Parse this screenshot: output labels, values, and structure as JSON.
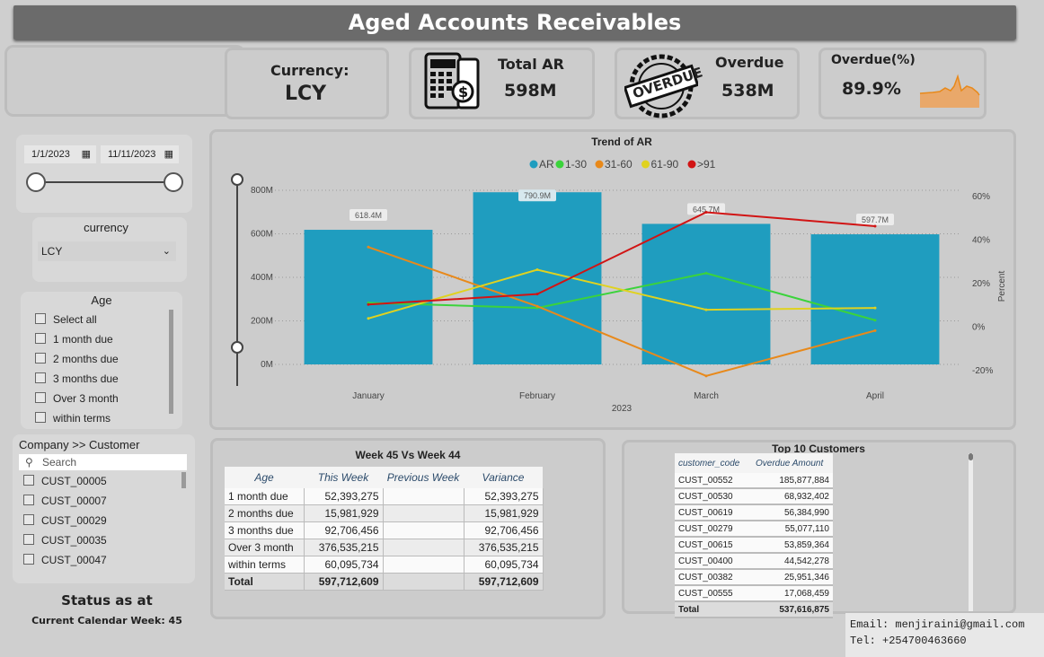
{
  "header": {
    "title": "Aged Accounts Receivables"
  },
  "kpis": {
    "currency_label": "Currency:",
    "currency_value": "LCY",
    "total_ar_label": "Total AR",
    "total_ar_value": "598M",
    "overdue_label": "Overdue",
    "overdue_value": "538M",
    "overdue_badge_text": "OVERDUE",
    "overdue_pct_label": "Overdue(%)",
    "overdue_pct_value": "89.9%"
  },
  "filters": {
    "date_start": "1/1/2023",
    "date_end": "11/11/2023",
    "currency_title": "currency",
    "currency_selected": "LCY",
    "age_title": "Age",
    "age_items": [
      "Select all",
      "1 month due",
      "2 months due",
      "3 months due",
      "Over 3 month",
      "within terms"
    ],
    "customer_title": "Company >> Customer",
    "customer_search_placeholder": "Search",
    "customer_items": [
      "CUST_00005",
      "CUST_00007",
      "CUST_00029",
      "CUST_00035",
      "CUST_00047"
    ]
  },
  "status": {
    "title": "Status as at",
    "week_label": "Current Calendar Week: 45"
  },
  "chart_data": {
    "type": "bar",
    "title": "Trend of AR",
    "categories": [
      "January",
      "February",
      "March",
      "April"
    ],
    "xlabel": "2023",
    "ylabel": "",
    "y2label": "Percent",
    "ylim": [
      0,
      800
    ],
    "y_ticks": [
      "0M",
      "200M",
      "400M",
      "600M",
      "800M"
    ],
    "y2lim": [
      -20,
      80
    ],
    "y2_ticks": [
      "-20%",
      "0%",
      "20%",
      "40%",
      "60%"
    ],
    "bar_series": {
      "name": "AR",
      "values": [
        618.4,
        790.9,
        645.7,
        597.7
      ],
      "labels": [
        "618.4M",
        "790.9M",
        "645.7M",
        "597.7M"
      ],
      "color": "#1f9dbf"
    },
    "line_series": [
      {
        "name": "1-30",
        "values": [
          19,
          16,
          36,
          9
        ],
        "color": "#3bd33b"
      },
      {
        "name": "31-60",
        "values": [
          51,
          17,
          -23,
          3
        ],
        "color": "#e8891a"
      },
      {
        "name": "61-90",
        "values": [
          10,
          38,
          15,
          16
        ],
        "color": "#e0d21f"
      },
      {
        "name": ">91",
        "values": [
          18,
          24,
          71,
          63
        ],
        "color": "#d11414"
      }
    ],
    "legend_position": "top-center",
    "grid": true
  },
  "week_table": {
    "title": "Week 45 Vs Week 44",
    "columns": [
      "Age",
      "This Week",
      "Previous Week",
      "Variance"
    ],
    "rows": [
      [
        "1 month due",
        "52,393,275",
        "",
        "52,393,275"
      ],
      [
        "2 months due",
        "15,981,929",
        "",
        "15,981,929"
      ],
      [
        "3 months due",
        "92,706,456",
        "",
        "92,706,456"
      ],
      [
        "Over 3 month",
        "376,535,215",
        "",
        "376,535,215"
      ],
      [
        "within terms",
        "60,095,734",
        "",
        "60,095,734"
      ]
    ],
    "total": [
      "Total",
      "597,712,609",
      "",
      "597,712,609"
    ]
  },
  "top_customers": {
    "title": "Top 10 Customers",
    "columns": [
      "customer_code",
      "Overdue Amount"
    ],
    "rows": [
      [
        "CUST_00552",
        "185,877,884"
      ],
      [
        "CUST_00530",
        "68,932,402"
      ],
      [
        "CUST_00619",
        "56,384,990"
      ],
      [
        "CUST_00279",
        "55,077,110"
      ],
      [
        "CUST_00615",
        "53,859,364"
      ],
      [
        "CUST_00400",
        "44,542,278"
      ],
      [
        "CUST_00382",
        "25,951,346"
      ],
      [
        "CUST_00555",
        "17,068,459"
      ]
    ],
    "total": [
      "Total",
      "537,616,875"
    ]
  },
  "contact": {
    "email": "Email: menjiraini@gmail.com",
    "tel": "Tel: +254700463660"
  }
}
